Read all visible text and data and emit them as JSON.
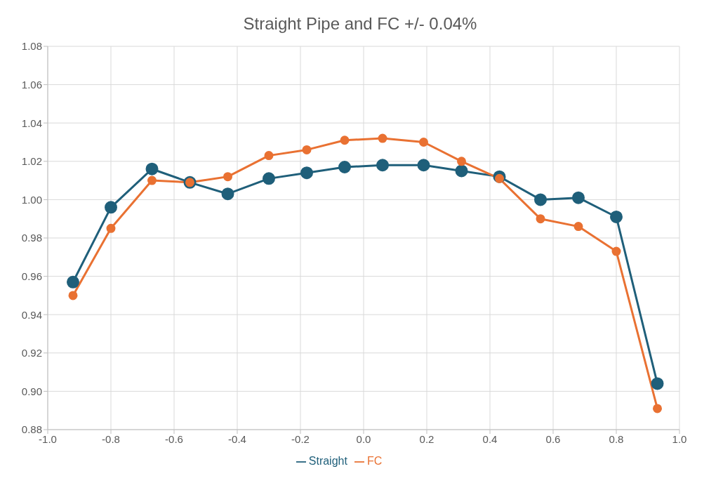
{
  "chart_data": {
    "type": "line",
    "title": "Straight Pipe and FC +/- 0.04%",
    "x": [
      -0.92,
      -0.8,
      -0.67,
      -0.55,
      -0.43,
      -0.3,
      -0.18,
      -0.06,
      0.06,
      0.19,
      0.31,
      0.43,
      0.56,
      0.68,
      0.8,
      0.93
    ],
    "series": [
      {
        "name": "Straight",
        "color": "#1f5f7a",
        "values": [
          0.957,
          0.996,
          1.016,
          1.009,
          1.003,
          1.011,
          1.014,
          1.017,
          1.018,
          1.018,
          1.015,
          1.012,
          1.0,
          1.001,
          0.991,
          0.904
        ]
      },
      {
        "name": "FC",
        "color": "#e97132",
        "values": [
          0.95,
          0.985,
          1.01,
          1.009,
          1.012,
          1.023,
          1.026,
          1.031,
          1.032,
          1.03,
          1.02,
          1.011,
          0.99,
          0.986,
          0.973,
          0.891
        ]
      }
    ],
    "xlim": [
      -1.0,
      1.0
    ],
    "xticks": [
      {
        "value": -1.0,
        "label": "-1.0"
      },
      {
        "value": -0.8,
        "label": "-0.8"
      },
      {
        "value": -0.6,
        "label": "-0.6"
      },
      {
        "value": -0.4,
        "label": "-0.4"
      },
      {
        "value": -0.2,
        "label": "-0.2"
      },
      {
        "value": 0,
        "label": "0.0"
      },
      {
        "value": 0.2,
        "label": "0.2"
      },
      {
        "value": 0.4,
        "label": "0.4"
      },
      {
        "value": 0.6,
        "label": "0.6"
      },
      {
        "value": 0.8,
        "label": "0.8"
      },
      {
        "value": 1.0,
        "label": "1.0"
      }
    ],
    "ylim": [
      0.88,
      1.08
    ],
    "yticks": [
      {
        "value": 0.88,
        "label": "0.88"
      },
      {
        "value": 0.9,
        "label": "0.90"
      },
      {
        "value": 0.92,
        "label": "0.92"
      },
      {
        "value": 0.94,
        "label": "0.94"
      },
      {
        "value": 0.96,
        "label": "0.96"
      },
      {
        "value": 0.98,
        "label": "0.98"
      },
      {
        "value": 1.0,
        "label": "1.00"
      },
      {
        "value": 1.02,
        "label": "1.02"
      },
      {
        "value": 1.04,
        "label": "1.04"
      },
      {
        "value": 1.06,
        "label": "1.06"
      },
      {
        "value": 1.08,
        "label": "1.08"
      }
    ],
    "grid": true,
    "legend": "bottom",
    "marker": "circle",
    "line_style": "solid"
  }
}
